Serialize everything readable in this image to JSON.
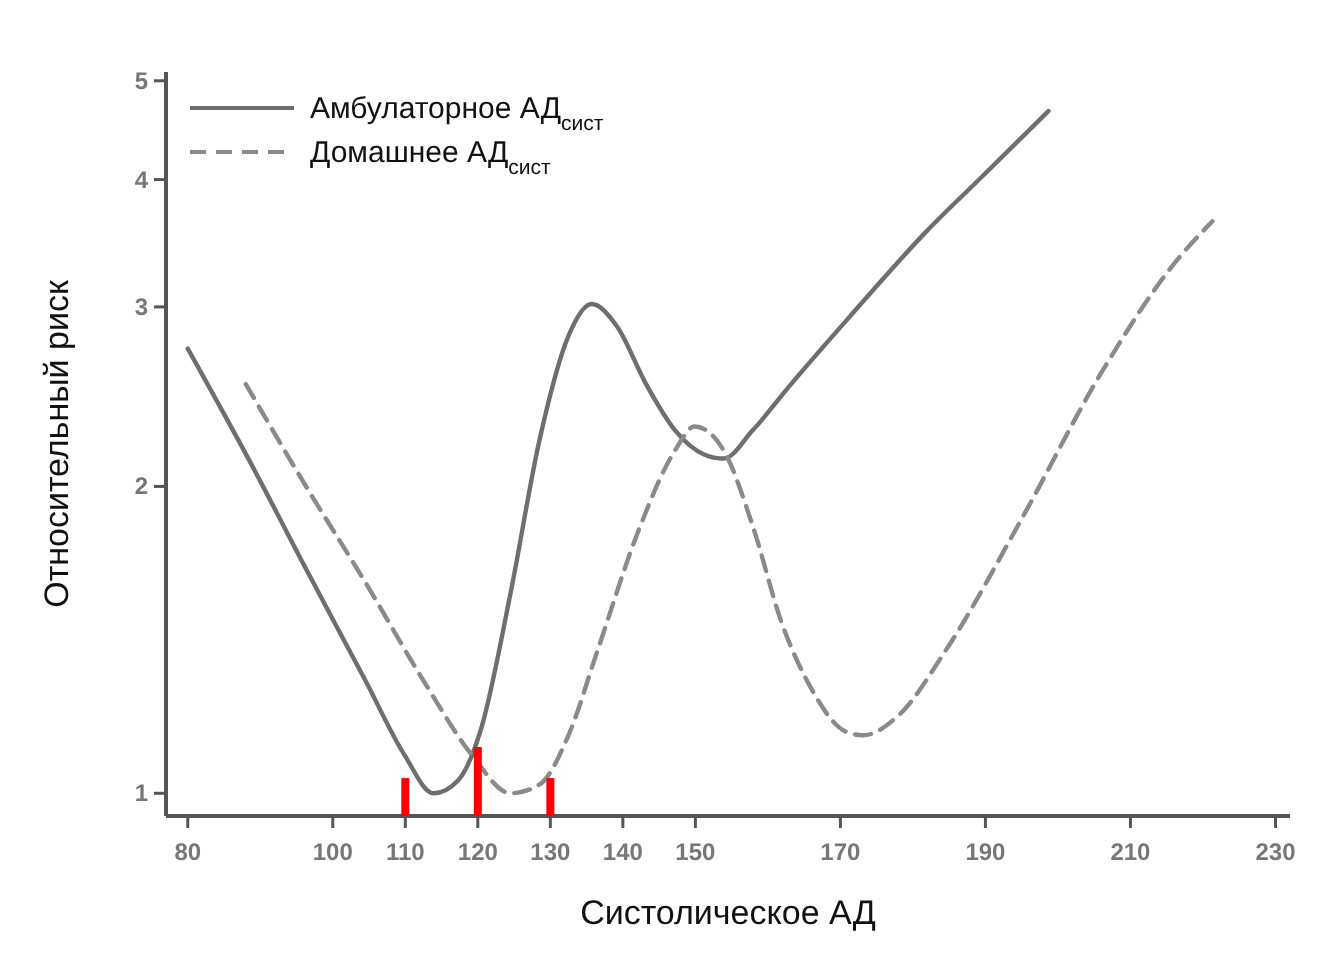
{
  "chart_data": {
    "type": "line",
    "xlabel": "Систолическое  АД",
    "ylabel": "Относительный риск",
    "log": "y",
    "xlim": [
      77,
      232
    ],
    "ylim": [
      0.95,
      5.1
    ],
    "xticks": [
      80,
      100,
      110,
      120,
      130,
      140,
      150,
      170,
      190,
      210,
      230
    ],
    "yticks": [
      1,
      2,
      3,
      4,
      5
    ],
    "legend": "top left",
    "grid": false,
    "series": [
      {
        "name": "Амбулаторное АД$_{сист}$",
        "color": "#6e6e6e",
        "line_style": "solid",
        "x": [
          80,
          88.5,
          96.5,
          104.5,
          109.9,
          113.9,
          117.3,
          120.5,
          124.5,
          128.5,
          132.5,
          135.7,
          139.2,
          143.2,
          147.2,
          151.2,
          153.9,
          157.9,
          163.2,
          171.2,
          181.9,
          189.9,
          198.7
        ],
        "values": [
          2.73,
          2.12,
          1.65,
          1.29,
          1.09,
          1.0,
          1.03,
          1.16,
          1.57,
          2.22,
          2.81,
          3.02,
          2.87,
          2.52,
          2.27,
          2.15,
          2.13,
          2.27,
          2.52,
          2.93,
          3.56,
          4.05,
          4.67
        ]
      },
      {
        "name": "Домашнее АД$_{сист}$",
        "color": "#8a8a8a",
        "line_style": "dashed",
        "x": [
          88,
          96.5,
          104.5,
          112.5,
          119.2,
          124.5,
          128.5,
          132.5,
          136.5,
          141.9,
          147.2,
          149.9,
          153.9,
          157.9,
          161.9,
          165.9,
          170.7,
          173.1,
          177.9,
          184.5,
          195.2,
          205.9,
          216.5,
          221.3
        ],
        "values": [
          2.52,
          1.99,
          1.61,
          1.29,
          1.09,
          1.0,
          1.02,
          1.14,
          1.38,
          1.79,
          2.17,
          2.29,
          2.17,
          1.83,
          1.47,
          1.27,
          1.15,
          1.14,
          1.19,
          1.38,
          1.87,
          2.58,
          3.34,
          3.64
        ]
      },
      {
        "type": "bar",
        "color": "#ff0000",
        "x": [
          110,
          120,
          130
        ],
        "values": [
          1.035,
          1.11,
          1.035
        ]
      }
    ]
  }
}
